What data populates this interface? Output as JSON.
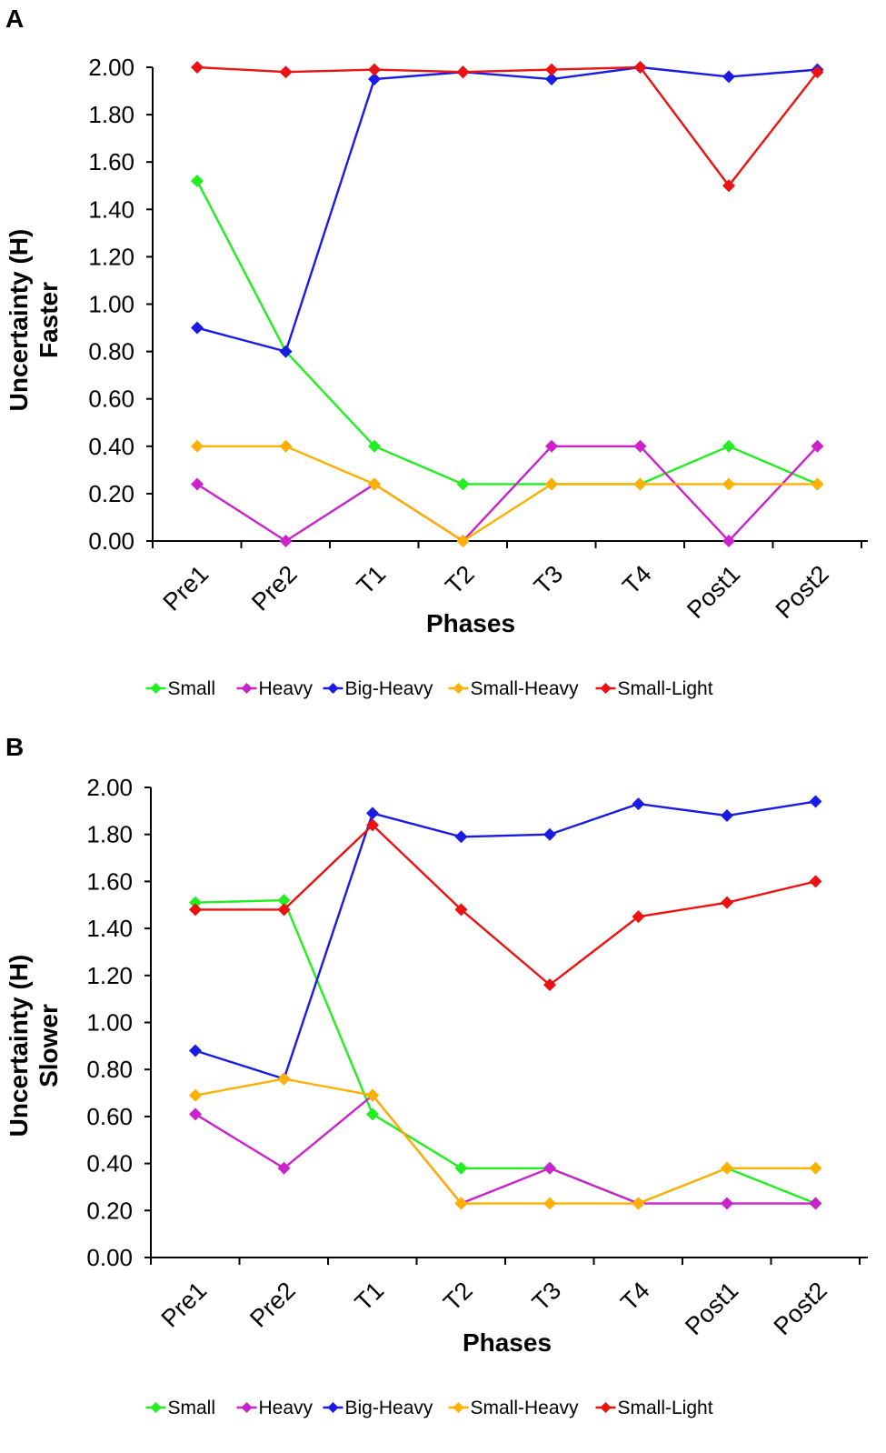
{
  "colors": {
    "Small": "#22ee22",
    "Heavy": "#cc22cc",
    "Big-Heavy": "#1a1ae6",
    "Small-Heavy": "#ffb000",
    "Small-Light": "#ee1111"
  },
  "chart_data": [
    {
      "panel": "A",
      "type": "line",
      "xlabel": "Phases",
      "ylabel": "Uncertainty (H)",
      "ylabel2": "Faster",
      "ylim": [
        0,
        2
      ],
      "yticks": [
        "0.00",
        "0.20",
        "0.40",
        "0.60",
        "0.80",
        "1.00",
        "1.20",
        "1.40",
        "1.60",
        "1.80",
        "2.00"
      ],
      "categories": [
        "Pre1",
        "Pre2",
        "T1",
        "T2",
        "T3",
        "T4",
        "Post1",
        "Post2"
      ],
      "legend_position": "bottom",
      "series": [
        {
          "name": "Small",
          "values": [
            1.52,
            0.8,
            0.4,
            0.24,
            0.24,
            0.24,
            0.4,
            0.24
          ]
        },
        {
          "name": "Heavy",
          "values": [
            0.24,
            0.0,
            0.24,
            0.0,
            0.4,
            0.4,
            0.0,
            0.4
          ]
        },
        {
          "name": "Big-Heavy",
          "values": [
            0.9,
            0.8,
            1.95,
            1.98,
            1.95,
            2.0,
            1.96,
            1.99
          ]
        },
        {
          "name": "Small-Heavy",
          "values": [
            0.4,
            0.4,
            0.24,
            0.0,
            0.24,
            0.24,
            0.24,
            0.24
          ]
        },
        {
          "name": "Small-Light",
          "values": [
            2.0,
            1.98,
            1.99,
            1.98,
            1.99,
            2.0,
            1.5,
            1.98
          ]
        }
      ]
    },
    {
      "panel": "B",
      "type": "line",
      "xlabel": "Phases",
      "ylabel": "Uncertainty (H)",
      "ylabel2": "Slower",
      "ylim": [
        0,
        2
      ],
      "yticks": [
        "0.00",
        "0.20",
        "0.40",
        "0.60",
        "0.80",
        "1.00",
        "1.20",
        "1.40",
        "1.60",
        "1.80",
        "2.00"
      ],
      "categories": [
        "Pre1",
        "Pre2",
        "T1",
        "T2",
        "T3",
        "T4",
        "Post1",
        "Post2"
      ],
      "legend_position": "bottom",
      "series": [
        {
          "name": "Small",
          "values": [
            1.51,
            1.52,
            0.61,
            0.38,
            0.38,
            0.23,
            0.38,
            0.23
          ]
        },
        {
          "name": "Heavy",
          "values": [
            0.61,
            0.38,
            0.69,
            0.23,
            0.38,
            0.23,
            0.23,
            0.23
          ]
        },
        {
          "name": "Big-Heavy",
          "values": [
            0.88,
            0.76,
            1.89,
            1.79,
            1.8,
            1.93,
            1.88,
            1.94
          ]
        },
        {
          "name": "Small-Heavy",
          "values": [
            0.69,
            0.76,
            0.69,
            0.23,
            0.23,
            0.23,
            0.38,
            0.38
          ]
        },
        {
          "name": "Small-Light",
          "values": [
            1.48,
            1.48,
            1.84,
            1.48,
            1.16,
            1.45,
            1.51,
            1.6
          ]
        }
      ]
    }
  ]
}
